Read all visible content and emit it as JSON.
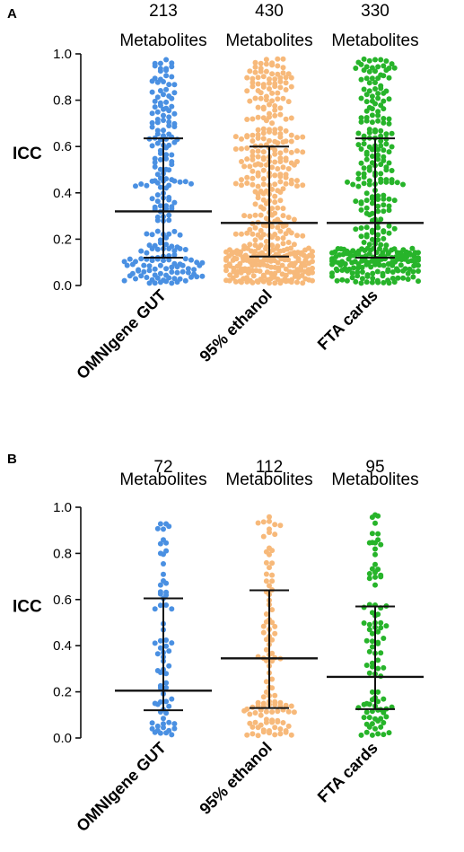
{
  "chart_data": [
    {
      "type": "scatter",
      "panel": "A",
      "ylabel": "ICC",
      "ylim": [
        0,
        1.0
      ],
      "yticks": [
        "0.0",
        "0.2",
        "0.4",
        "0.6",
        "0.8",
        "1.0"
      ],
      "categories": [
        "OMNIgene GUT",
        "95% ethanol",
        "FTA cards"
      ],
      "counts": [
        "213",
        "430",
        "330"
      ],
      "count_unit": "Metabolites",
      "colors": [
        "#4a90e2",
        "#f7b97a",
        "#27b42a"
      ],
      "summary": [
        {
          "median": 0.32,
          "q1": 0.12,
          "q3": 0.635
        },
        {
          "median": 0.27,
          "q1": 0.125,
          "q3": 0.6
        },
        {
          "median": 0.27,
          "q1": 0.12,
          "q3": 0.635
        }
      ]
    },
    {
      "type": "scatter",
      "panel": "B",
      "ylabel": "ICC",
      "ylim": [
        0,
        1.0
      ],
      "yticks": [
        "0.0",
        "0.2",
        "0.4",
        "0.6",
        "0.8",
        "1.0"
      ],
      "categories": [
        "OMNIgene GUT",
        "95% ethanol",
        "FTA cards"
      ],
      "counts": [
        "72",
        "112",
        "95"
      ],
      "count_unit": "Metabolites",
      "colors": [
        "#4a90e2",
        "#f7b97a",
        "#27b42a"
      ],
      "summary": [
        {
          "median": 0.205,
          "q1": 0.12,
          "q3": 0.605
        },
        {
          "median": 0.345,
          "q1": 0.13,
          "q3": 0.64
        },
        {
          "median": 0.265,
          "q1": 0.125,
          "q3": 0.57
        }
      ]
    }
  ]
}
